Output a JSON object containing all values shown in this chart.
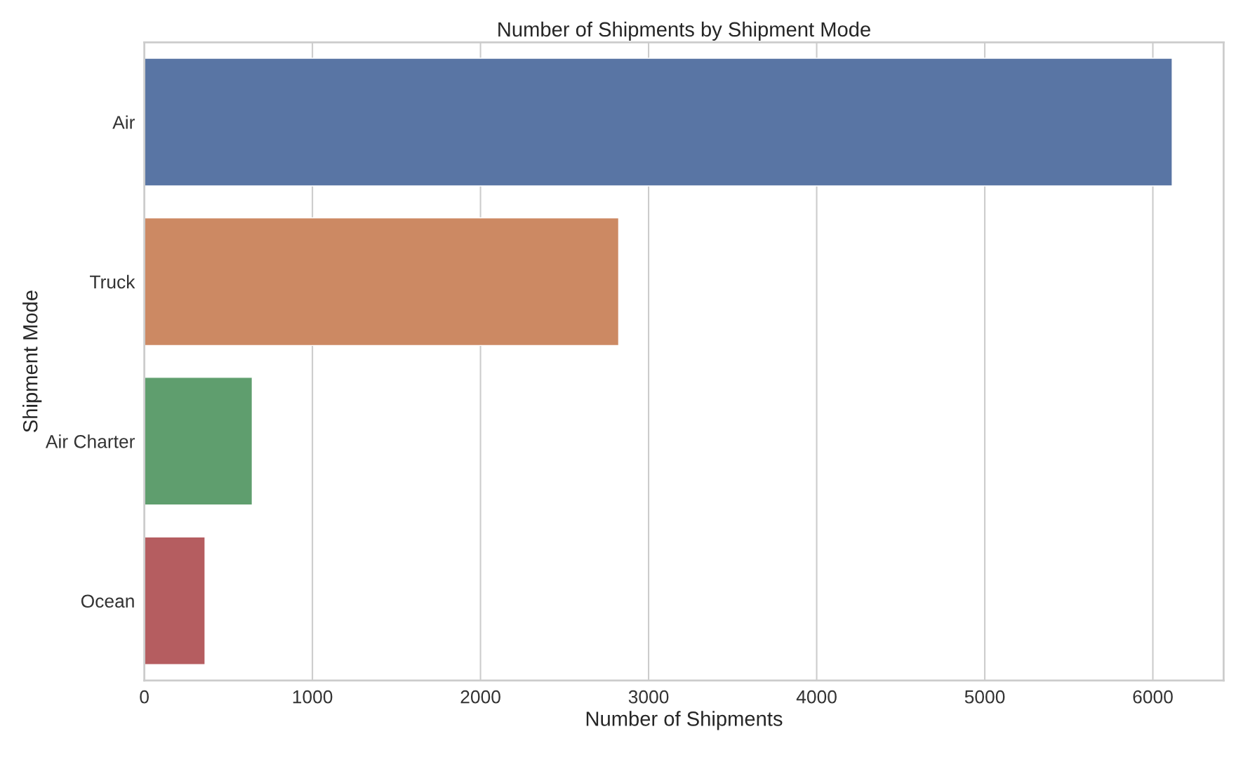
{
  "chart_data": {
    "type": "bar",
    "orientation": "horizontal",
    "title": "Number of Shipments by Shipment Mode",
    "xlabel": "Number of Shipments",
    "ylabel": "Shipment Mode",
    "categories": [
      "Air",
      "Truck",
      "Air Charter",
      "Ocean"
    ],
    "values": [
      6115,
      2822,
      642,
      361
    ],
    "colors": [
      "#5975a4",
      "#cc8963",
      "#5f9e6e",
      "#b55d60"
    ],
    "xlim": [
      0,
      6421
    ],
    "xticks": [
      0,
      1000,
      2000,
      3000,
      4000,
      5000,
      6000
    ],
    "grid": "x",
    "legend": false
  }
}
